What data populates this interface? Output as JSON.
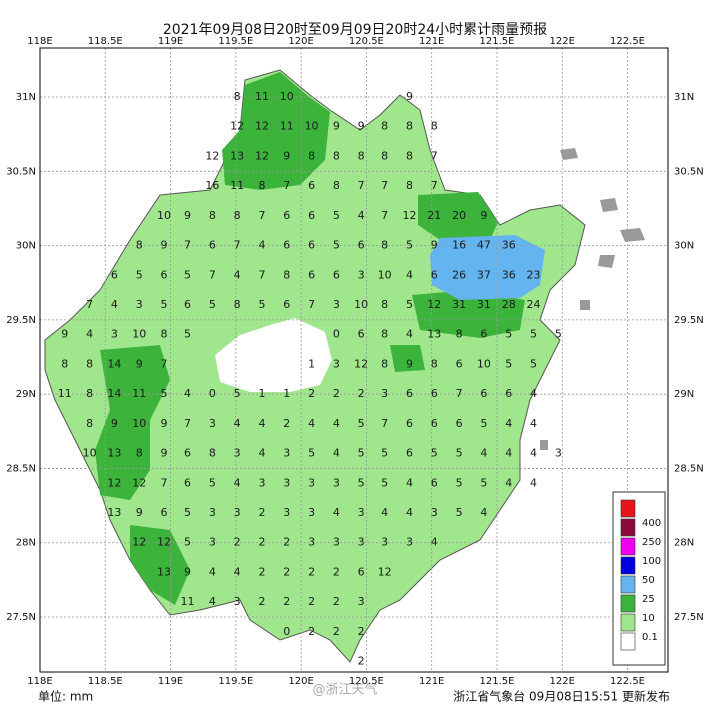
{
  "map": {
    "title": "2021年09月08日20时至09月09日20时24小时累计雨量预报",
    "lon_range": [
      118,
      122.81
    ],
    "lat_range": [
      27.13,
      31.33
    ],
    "lon_ticks": [
      {
        "value": 118,
        "label": "118E"
      },
      {
        "value": 118.5,
        "label": "118.5E"
      },
      {
        "value": 119,
        "label": "119E"
      },
      {
        "value": 119.5,
        "label": "119.5E"
      },
      {
        "value": 120,
        "label": "120E"
      },
      {
        "value": 120.5,
        "label": "120.5E"
      },
      {
        "value": 121,
        "label": "121E"
      },
      {
        "value": 121.5,
        "label": "121.5E"
      },
      {
        "value": 122,
        "label": "122E"
      },
      {
        "value": 122.5,
        "label": "122.5E"
      }
    ],
    "lat_ticks": [
      {
        "value": 31,
        "label": "31N"
      },
      {
        "value": 30.5,
        "label": "30.5N"
      },
      {
        "value": 30,
        "label": "30N"
      },
      {
        "value": 29.5,
        "label": "29.5N"
      },
      {
        "value": 29,
        "label": "29N"
      },
      {
        "value": 28.5,
        "label": "28.5N"
      },
      {
        "value": 28,
        "label": "28N"
      },
      {
        "value": 27.5,
        "label": "27.5N"
      }
    ],
    "legend": {
      "colors": [
        "#e8141c",
        "#8b0a3c",
        "#f000f0",
        "#0000e0",
        "#64b4f0",
        "#3cb43c",
        "#a0e68c",
        "#ffffff"
      ],
      "thresholds": [
        400,
        250,
        100,
        50,
        25,
        10,
        0.1
      ]
    },
    "unit": "单位: mm",
    "footer": "浙江省气象台 09月08日15:51 更新发布",
    "watermark": "@浙江天气",
    "lons": [
      118.19,
      118.38,
      118.57,
      118.76,
      118.95,
      119.13,
      119.32,
      119.51,
      119.7,
      119.89,
      120.08,
      120.27,
      120.46,
      120.64,
      120.83,
      121.02,
      121.21,
      121.4,
      121.59,
      121.78,
      121.97,
      122.15,
      122.34
    ],
    "rows": [
      {
        "lat": 31.0,
        "values": [
          null,
          null,
          null,
          null,
          null,
          null,
          null,
          8,
          11,
          10,
          null,
          null,
          null,
          null,
          9,
          null,
          null,
          null,
          null,
          null,
          null,
          null,
          null
        ]
      },
      {
        "lat": 30.8,
        "values": [
          null,
          null,
          null,
          null,
          null,
          null,
          null,
          12,
          12,
          11,
          10,
          9,
          9,
          8,
          8,
          8,
          null,
          null,
          null,
          null,
          null,
          null,
          null
        ]
      },
      {
        "lat": 30.6,
        "values": [
          null,
          null,
          null,
          null,
          null,
          null,
          12,
          13,
          12,
          9,
          8,
          8,
          8,
          8,
          8,
          7,
          null,
          null,
          null,
          null,
          null,
          null,
          null
        ]
      },
      {
        "lat": 30.4,
        "values": [
          null,
          null,
          null,
          null,
          null,
          null,
          16,
          11,
          8,
          7,
          6,
          8,
          7,
          7,
          8,
          7,
          null,
          null,
          null,
          null,
          null,
          null,
          null
        ]
      },
      {
        "lat": 30.2,
        "values": [
          null,
          null,
          null,
          null,
          10,
          9,
          8,
          8,
          7,
          6,
          6,
          5,
          4,
          7,
          12,
          21,
          20,
          9,
          null,
          null,
          null,
          null,
          null
        ]
      },
      {
        "lat": 30.0,
        "values": [
          null,
          null,
          null,
          8,
          9,
          7,
          6,
          7,
          4,
          6,
          6,
          5,
          6,
          8,
          5,
          9,
          16,
          47,
          36,
          null,
          null,
          null,
          null
        ]
      },
      {
        "lat": 29.8,
        "values": [
          null,
          null,
          6,
          5,
          6,
          5,
          7,
          4,
          7,
          8,
          6,
          6,
          3,
          10,
          4,
          6,
          26,
          37,
          36,
          23,
          null,
          null,
          null
        ]
      },
      {
        "lat": 29.6,
        "values": [
          null,
          7,
          4,
          3,
          5,
          6,
          5,
          8,
          5,
          6,
          7,
          3,
          10,
          8,
          5,
          12,
          31,
          31,
          28,
          24,
          null,
          null,
          null
        ]
      },
      {
        "lat": 29.4,
        "values": [
          9,
          4,
          3,
          10,
          8,
          5,
          null,
          null,
          null,
          null,
          null,
          0,
          6,
          8,
          4,
          13,
          8,
          6,
          5,
          5,
          5,
          null,
          null
        ]
      },
      {
        "lat": 29.2,
        "values": [
          8,
          8,
          14,
          9,
          7,
          null,
          null,
          null,
          null,
          null,
          1,
          3,
          12,
          8,
          9,
          8,
          6,
          10,
          5,
          5,
          null,
          null,
          null
        ]
      },
      {
        "lat": 29.0,
        "values": [
          11,
          8,
          14,
          11,
          5,
          4,
          0,
          5,
          1,
          1,
          2,
          2,
          2,
          3,
          6,
          6,
          7,
          6,
          6,
          4,
          null,
          null,
          null
        ]
      },
      {
        "lat": 28.8,
        "values": [
          null,
          8,
          9,
          10,
          9,
          7,
          3,
          4,
          4,
          2,
          4,
          4,
          5,
          7,
          6,
          6,
          6,
          5,
          4,
          4,
          null,
          null,
          null
        ]
      },
      {
        "lat": 28.6,
        "values": [
          null,
          10,
          13,
          8,
          9,
          6,
          8,
          3,
          4,
          3,
          5,
          4,
          5,
          5,
          6,
          5,
          5,
          4,
          4,
          4,
          3,
          null,
          null
        ]
      },
      {
        "lat": 28.4,
        "values": [
          null,
          null,
          12,
          12,
          7,
          6,
          5,
          4,
          3,
          3,
          3,
          3,
          5,
          5,
          4,
          6,
          5,
          5,
          4,
          4,
          null,
          null,
          null
        ]
      },
      {
        "lat": 28.2,
        "values": [
          null,
          null,
          13,
          9,
          6,
          5,
          3,
          3,
          2,
          3,
          3,
          4,
          3,
          4,
          4,
          3,
          5,
          4,
          null,
          null,
          null,
          null,
          null
        ]
      },
      {
        "lat": 28.0,
        "values": [
          null,
          null,
          null,
          12,
          12,
          5,
          3,
          2,
          2,
          2,
          3,
          3,
          3,
          3,
          3,
          4,
          null,
          null,
          null,
          null,
          null,
          null,
          null
        ]
      },
      {
        "lat": 27.8,
        "values": [
          null,
          null,
          null,
          null,
          13,
          9,
          4,
          4,
          2,
          2,
          2,
          2,
          6,
          12,
          null,
          null,
          null,
          null,
          null,
          null,
          null,
          null,
          null
        ]
      },
      {
        "lat": 27.6,
        "values": [
          null,
          null,
          null,
          null,
          null,
          11,
          4,
          3,
          2,
          2,
          2,
          2,
          3,
          null,
          null,
          null,
          null,
          null,
          null,
          null,
          null,
          null,
          null
        ]
      },
      {
        "lat": 27.4,
        "values": [
          null,
          null,
          null,
          null,
          null,
          null,
          null,
          null,
          null,
          0,
          2,
          2,
          2,
          null,
          null,
          null,
          null,
          null,
          null,
          null,
          null,
          null,
          null
        ]
      },
      {
        "lat": 27.2,
        "values": [
          null,
          null,
          null,
          null,
          null,
          null,
          null,
          null,
          null,
          null,
          null,
          null,
          2,
          null,
          null,
          null,
          null,
          null,
          null,
          null,
          null,
          null,
          null
        ]
      }
    ]
  }
}
